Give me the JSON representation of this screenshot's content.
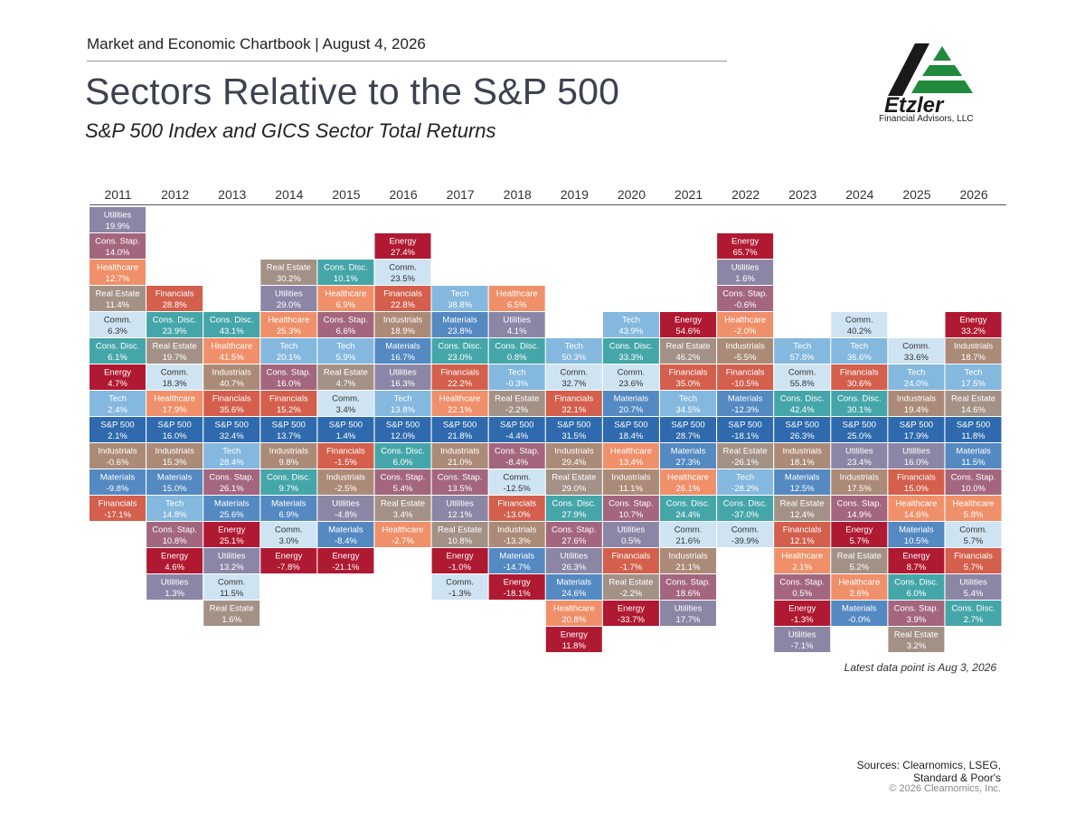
{
  "header": {
    "chartbook": "Market and Economic Chartbook | August 4, 2026",
    "title": "Sectors Relative to the S&P 500",
    "subtitle": "S&P 500 Index and GICS Sector Total Returns"
  },
  "logo": {
    "name": "Etzler",
    "caption": "Financial Advisors, LLC"
  },
  "footnote": "Latest data point is Aug 3, 2026",
  "sources": {
    "line1": "Sources: Clearnomics, LSEG,",
    "line2": "Standard & Poor's",
    "copyright": "© 2026 Clearnomics, Inc."
  },
  "colors": {
    "Utilities": "#8c86a6",
    "Cons. Stap.": "#a3667e",
    "Healthcare": "#f0906a",
    "Real Estate": "#a39186",
    "Comm.": "#cfe4f2",
    "Cons. Disc.": "#45a6a9",
    "Energy": "#b01932",
    "Tech": "#85b8de",
    "S&P 500": "#2e6aad",
    "Industrials": "#ab8b78",
    "Materials": "#5489c2",
    "Financials": "#d35f4c"
  },
  "chart_data": {
    "type": "table",
    "anchor_row": 8,
    "years": [
      {
        "year": "2011",
        "start": 0,
        "cells": [
          {
            "sector": "Utilities",
            "value": "19.9%"
          },
          {
            "sector": "Cons. Stap.",
            "value": "14.0%"
          },
          {
            "sector": "Healthcare",
            "value": "12.7%"
          },
          {
            "sector": "Real Estate",
            "value": "11.4%"
          },
          {
            "sector": "Comm.",
            "value": "6.3%"
          },
          {
            "sector": "Cons. Disc.",
            "value": "6.1%"
          },
          {
            "sector": "Energy",
            "value": "4.7%"
          },
          {
            "sector": "Tech",
            "value": "2.4%"
          },
          {
            "sector": "S&P 500",
            "value": "2.1%"
          },
          {
            "sector": "Industrials",
            "value": "-0.6%"
          },
          {
            "sector": "Materials",
            "value": "-9.8%"
          },
          {
            "sector": "Financials",
            "value": "-17.1%"
          }
        ]
      },
      {
        "year": "2012",
        "start": 3,
        "cells": [
          {
            "sector": "Financials",
            "value": "28.8%"
          },
          {
            "sector": "Cons. Disc.",
            "value": "23.9%"
          },
          {
            "sector": "Real Estate",
            "value": "19.7%"
          },
          {
            "sector": "Comm.",
            "value": "18.3%"
          },
          {
            "sector": "Healthcare",
            "value": "17.9%"
          },
          {
            "sector": "S&P 500",
            "value": "16.0%"
          },
          {
            "sector": "Industrials",
            "value": "15.3%"
          },
          {
            "sector": "Materials",
            "value": "15.0%"
          },
          {
            "sector": "Tech",
            "value": "14.8%"
          },
          {
            "sector": "Cons. Stap.",
            "value": "10.8%"
          },
          {
            "sector": "Energy",
            "value": "4.6%"
          },
          {
            "sector": "Utilities",
            "value": "1.3%"
          }
        ]
      },
      {
        "year": "2013",
        "start": 4,
        "cells": [
          {
            "sector": "Cons. Disc.",
            "value": "43.1%"
          },
          {
            "sector": "Healthcare",
            "value": "41.5%"
          },
          {
            "sector": "Industrials",
            "value": "40.7%"
          },
          {
            "sector": "Financials",
            "value": "35.6%"
          },
          {
            "sector": "S&P 500",
            "value": "32.4%"
          },
          {
            "sector": "Tech",
            "value": "28.4%"
          },
          {
            "sector": "Cons. Stap.",
            "value": "26.1%"
          },
          {
            "sector": "Materials",
            "value": "25.6%"
          },
          {
            "sector": "Energy",
            "value": "25.1%"
          },
          {
            "sector": "Utilities",
            "value": "13.2%"
          },
          {
            "sector": "Comm.",
            "value": "11.5%"
          },
          {
            "sector": "Real Estate",
            "value": "1.6%"
          }
        ]
      },
      {
        "year": "2014",
        "start": 2,
        "cells": [
          {
            "sector": "Real Estate",
            "value": "30.2%"
          },
          {
            "sector": "Utilities",
            "value": "29.0%"
          },
          {
            "sector": "Healthcare",
            "value": "25.3%"
          },
          {
            "sector": "Tech",
            "value": "20.1%"
          },
          {
            "sector": "Cons. Stap.",
            "value": "16.0%"
          },
          {
            "sector": "Financials",
            "value": "15.2%"
          },
          {
            "sector": "S&P 500",
            "value": "13.7%"
          },
          {
            "sector": "Industrials",
            "value": "9.8%"
          },
          {
            "sector": "Cons. Disc.",
            "value": "9.7%"
          },
          {
            "sector": "Materials",
            "value": "6.9%"
          },
          {
            "sector": "Comm.",
            "value": "3.0%"
          },
          {
            "sector": "Energy",
            "value": "-7.8%"
          }
        ]
      },
      {
        "year": "2015",
        "start": 2,
        "cells": [
          {
            "sector": "Cons. Disc.",
            "value": "10.1%"
          },
          {
            "sector": "Healthcare",
            "value": "6.9%"
          },
          {
            "sector": "Cons. Stap.",
            "value": "6.6%"
          },
          {
            "sector": "Tech",
            "value": "5.9%"
          },
          {
            "sector": "Real Estate",
            "value": "4.7%"
          },
          {
            "sector": "Comm.",
            "value": "3.4%"
          },
          {
            "sector": "S&P 500",
            "value": "1.4%"
          },
          {
            "sector": "Financials",
            "value": "-1.5%"
          },
          {
            "sector": "Industrials",
            "value": "-2.5%"
          },
          {
            "sector": "Utilities",
            "value": "-4.8%"
          },
          {
            "sector": "Materials",
            "value": "-8.4%"
          },
          {
            "sector": "Energy",
            "value": "-21.1%"
          }
        ]
      },
      {
        "year": "2016",
        "start": 1,
        "cells": [
          {
            "sector": "Energy",
            "value": "27.4%"
          },
          {
            "sector": "Comm.",
            "value": "23.5%"
          },
          {
            "sector": "Financials",
            "value": "22.8%"
          },
          {
            "sector": "Industrials",
            "value": "18.9%"
          },
          {
            "sector": "Materials",
            "value": "16.7%"
          },
          {
            "sector": "Utilities",
            "value": "16.3%"
          },
          {
            "sector": "Tech",
            "value": "13.8%"
          },
          {
            "sector": "S&P 500",
            "value": "12.0%"
          },
          {
            "sector": "Cons. Disc.",
            "value": "6.0%"
          },
          {
            "sector": "Cons. Stap.",
            "value": "5.4%"
          },
          {
            "sector": "Real Estate",
            "value": "3.4%"
          },
          {
            "sector": "Healthcare",
            "value": "-2.7%"
          }
        ]
      },
      {
        "year": "2017",
        "start": 3,
        "cells": [
          {
            "sector": "Tech",
            "value": "38.8%"
          },
          {
            "sector": "Materials",
            "value": "23.8%"
          },
          {
            "sector": "Cons. Disc.",
            "value": "23.0%"
          },
          {
            "sector": "Financials",
            "value": "22.2%"
          },
          {
            "sector": "Healthcare",
            "value": "22.1%"
          },
          {
            "sector": "S&P 500",
            "value": "21.8%"
          },
          {
            "sector": "Industrials",
            "value": "21.0%"
          },
          {
            "sector": "Cons. Stap.",
            "value": "13.5%"
          },
          {
            "sector": "Utilities",
            "value": "12.1%"
          },
          {
            "sector": "Real Estate",
            "value": "10.8%"
          },
          {
            "sector": "Energy",
            "value": "-1.0%"
          },
          {
            "sector": "Comm.",
            "value": "-1.3%"
          }
        ]
      },
      {
        "year": "2018",
        "start": 3,
        "cells": [
          {
            "sector": "Healthcare",
            "value": "6.5%"
          },
          {
            "sector": "Utilities",
            "value": "4.1%"
          },
          {
            "sector": "Cons. Disc.",
            "value": "0.8%"
          },
          {
            "sector": "Tech",
            "value": "-0.3%"
          },
          {
            "sector": "Real Estate",
            "value": "-2.2%"
          },
          {
            "sector": "S&P 500",
            "value": "-4.4%"
          },
          {
            "sector": "Cons. Stap.",
            "value": "-8.4%"
          },
          {
            "sector": "Comm.",
            "value": "-12.5%"
          },
          {
            "sector": "Financials",
            "value": "-13.0%"
          },
          {
            "sector": "Industrials",
            "value": "-13.3%"
          },
          {
            "sector": "Materials",
            "value": "-14.7%"
          },
          {
            "sector": "Energy",
            "value": "-18.1%"
          }
        ]
      },
      {
        "year": "2019",
        "start": 5,
        "cells": [
          {
            "sector": "Tech",
            "value": "50.3%"
          },
          {
            "sector": "Comm.",
            "value": "32.7%"
          },
          {
            "sector": "Financials",
            "value": "32.1%"
          },
          {
            "sector": "S&P 500",
            "value": "31.5%"
          },
          {
            "sector": "Industrials",
            "value": "29.4%"
          },
          {
            "sector": "Real Estate",
            "value": "29.0%"
          },
          {
            "sector": "Cons. Disc.",
            "value": "27.9%"
          },
          {
            "sector": "Cons. Stap.",
            "value": "27.6%"
          },
          {
            "sector": "Utilities",
            "value": "26.3%"
          },
          {
            "sector": "Materials",
            "value": "24.6%"
          },
          {
            "sector": "Healthcare",
            "value": "20.8%"
          },
          {
            "sector": "Energy",
            "value": "11.8%"
          }
        ]
      },
      {
        "year": "2020",
        "start": 4,
        "cells": [
          {
            "sector": "Tech",
            "value": "43.9%"
          },
          {
            "sector": "Cons. Disc.",
            "value": "33.3%"
          },
          {
            "sector": "Comm.",
            "value": "23.6%"
          },
          {
            "sector": "Materials",
            "value": "20.7%"
          },
          {
            "sector": "S&P 500",
            "value": "18.4%"
          },
          {
            "sector": "Healthcare",
            "value": "13.4%"
          },
          {
            "sector": "Industrials",
            "value": "11.1%"
          },
          {
            "sector": "Cons. Stap.",
            "value": "10.7%"
          },
          {
            "sector": "Utilities",
            "value": "0.5%"
          },
          {
            "sector": "Financials",
            "value": "-1.7%"
          },
          {
            "sector": "Real Estate",
            "value": "-2.2%"
          },
          {
            "sector": "Energy",
            "value": "-33.7%"
          }
        ]
      },
      {
        "year": "2021",
        "start": 4,
        "cells": [
          {
            "sector": "Energy",
            "value": "54.6%"
          },
          {
            "sector": "Real Estate",
            "value": "46.2%"
          },
          {
            "sector": "Financials",
            "value": "35.0%"
          },
          {
            "sector": "Tech",
            "value": "34.5%"
          },
          {
            "sector": "S&P 500",
            "value": "28.7%"
          },
          {
            "sector": "Materials",
            "value": "27.3%"
          },
          {
            "sector": "Healthcare",
            "value": "26.1%"
          },
          {
            "sector": "Cons. Disc.",
            "value": "24.4%"
          },
          {
            "sector": "Comm.",
            "value": "21.6%"
          },
          {
            "sector": "Industrials",
            "value": "21.1%"
          },
          {
            "sector": "Cons. Stap.",
            "value": "18.6%"
          },
          {
            "sector": "Utilities",
            "value": "17.7%"
          }
        ]
      },
      {
        "year": "2022",
        "start": 1,
        "cells": [
          {
            "sector": "Energy",
            "value": "65.7%"
          },
          {
            "sector": "Utilities",
            "value": "1.6%"
          },
          {
            "sector": "Cons. Stap.",
            "value": "-0.6%"
          },
          {
            "sector": "Healthcare",
            "value": "-2.0%"
          },
          {
            "sector": "Industrials",
            "value": "-5.5%"
          },
          {
            "sector": "Financials",
            "value": "-10.5%"
          },
          {
            "sector": "Materials",
            "value": "-12.3%"
          },
          {
            "sector": "S&P 500",
            "value": "-18.1%"
          },
          {
            "sector": "Real Estate",
            "value": "-26.1%"
          },
          {
            "sector": "Tech",
            "value": "-28.2%"
          },
          {
            "sector": "Cons. Disc.",
            "value": "-37.0%"
          },
          {
            "sector": "Comm.",
            "value": "-39.9%"
          }
        ]
      },
      {
        "year": "2023",
        "start": 5,
        "cells": [
          {
            "sector": "Tech",
            "value": "57.8%"
          },
          {
            "sector": "Comm.",
            "value": "55.8%"
          },
          {
            "sector": "Cons. Disc.",
            "value": "42.4%"
          },
          {
            "sector": "S&P 500",
            "value": "26.3%"
          },
          {
            "sector": "Industrials",
            "value": "18.1%"
          },
          {
            "sector": "Materials",
            "value": "12.5%"
          },
          {
            "sector": "Real Estate",
            "value": "12.4%"
          },
          {
            "sector": "Financials",
            "value": "12.1%"
          },
          {
            "sector": "Healthcare",
            "value": "2.1%"
          },
          {
            "sector": "Cons. Stap.",
            "value": "0.5%"
          },
          {
            "sector": "Energy",
            "value": "-1.3%"
          },
          {
            "sector": "Utilities",
            "value": "-7.1%"
          }
        ]
      },
      {
        "year": "2024",
        "start": 4,
        "cells": [
          {
            "sector": "Comm.",
            "value": "40.2%"
          },
          {
            "sector": "Tech",
            "value": "36.6%"
          },
          {
            "sector": "Financials",
            "value": "30.6%"
          },
          {
            "sector": "Cons. Disc.",
            "value": "30.1%"
          },
          {
            "sector": "S&P 500",
            "value": "25.0%"
          },
          {
            "sector": "Utilities",
            "value": "23.4%"
          },
          {
            "sector": "Industrials",
            "value": "17.5%"
          },
          {
            "sector": "Cons. Stap.",
            "value": "14.9%"
          },
          {
            "sector": "Energy",
            "value": "5.7%"
          },
          {
            "sector": "Real Estate",
            "value": "5.2%"
          },
          {
            "sector": "Healthcare",
            "value": "2.6%"
          },
          {
            "sector": "Materials",
            "value": "-0.0%"
          }
        ]
      },
      {
        "year": "2025",
        "start": 5,
        "cells": [
          {
            "sector": "Comm.",
            "value": "33.6%"
          },
          {
            "sector": "Tech",
            "value": "24.0%"
          },
          {
            "sector": "Industrials",
            "value": "19.4%"
          },
          {
            "sector": "S&P 500",
            "value": "17.9%"
          },
          {
            "sector": "Utilities",
            "value": "16.0%"
          },
          {
            "sector": "Financials",
            "value": "15.0%"
          },
          {
            "sector": "Healthcare",
            "value": "14.6%"
          },
          {
            "sector": "Materials",
            "value": "10.5%"
          },
          {
            "sector": "Energy",
            "value": "8.7%"
          },
          {
            "sector": "Cons. Disc.",
            "value": "6.0%"
          },
          {
            "sector": "Cons. Stap.",
            "value": "3.9%"
          },
          {
            "sector": "Real Estate",
            "value": "3.2%"
          }
        ]
      },
      {
        "year": "2026",
        "start": 4,
        "cells": [
          {
            "sector": "Energy",
            "value": "33.2%"
          },
          {
            "sector": "Industrials",
            "value": "18.7%"
          },
          {
            "sector": "Tech",
            "value": "17.5%"
          },
          {
            "sector": "Real Estate",
            "value": "14.6%"
          },
          {
            "sector": "S&P 500",
            "value": "11.8%"
          },
          {
            "sector": "Materials",
            "value": "11.5%"
          },
          {
            "sector": "Cons. Stap.",
            "value": "10.0%"
          },
          {
            "sector": "Healthcare",
            "value": "5.8%"
          },
          {
            "sector": "Comm.",
            "value": "5.7%"
          },
          {
            "sector": "Financials",
            "value": "5.7%"
          },
          {
            "sector": "Utilities",
            "value": "5.4%"
          },
          {
            "sector": "Cons. Disc.",
            "value": "2.7%"
          }
        ]
      }
    ]
  }
}
